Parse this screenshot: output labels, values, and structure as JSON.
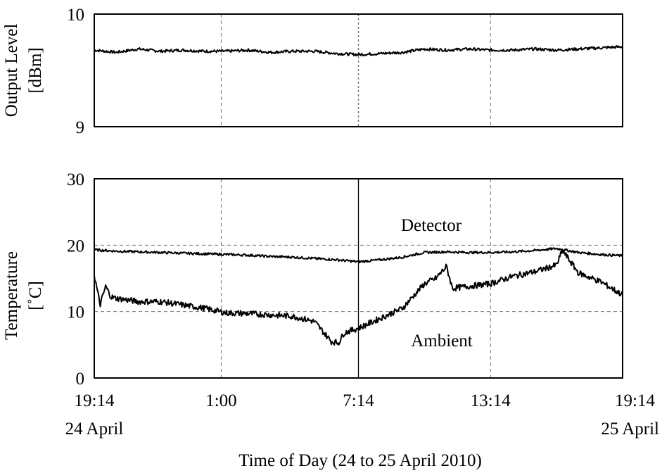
{
  "chart_data": [
    {
      "type": "line",
      "ylabel": [
        "Output Level",
        "[dBm]"
      ],
      "ylim": [
        9,
        10
      ],
      "yticks": [
        "10",
        "9"
      ],
      "xlim": [
        "24 April 19:14",
        "25 April 19:14"
      ],
      "grid": "vertical dashed",
      "series": [
        {
          "x": [
            "19:14",
            "20:14",
            "21:14",
            "22:14",
            "23:14",
            "0:14",
            "1:14",
            "2:14",
            "3:14",
            "4:14",
            "5:14",
            "6:14",
            "7:14",
            "8:14",
            "9:14",
            "10:14",
            "11:14",
            "12:14",
            "13:14",
            "14:14",
            "15:14",
            "16:14",
            "17:14",
            "18:14",
            "19:14"
          ],
          "values": [
            9.68,
            9.66,
            9.69,
            9.67,
            9.68,
            9.67,
            9.67,
            9.68,
            9.66,
            9.67,
            9.67,
            9.65,
            9.64,
            9.65,
            9.66,
            9.69,
            9.68,
            9.69,
            9.68,
            9.68,
            9.69,
            9.68,
            9.69,
            9.7,
            9.71
          ],
          "color": "#000000"
        }
      ]
    },
    {
      "type": "line",
      "ylabel": [
        "Temperature",
        "[˚C]"
      ],
      "ylim": [
        0,
        30
      ],
      "yticks": [
        "30",
        "20",
        "10",
        "0"
      ],
      "xticks": [
        "19:14",
        "1:00",
        "7:14",
        "13:14",
        "19:14"
      ],
      "xtick_dates": [
        "24 April",
        "25 April"
      ],
      "xlabel": "Time of Day (24 to 25 April 2010)",
      "grid": "dashed",
      "annotations": [
        "Detector",
        "Ambient"
      ],
      "series": [
        {
          "x": [
            "19:14",
            "20:14",
            "21:14",
            "22:14",
            "23:14",
            "0:14",
            "1:14",
            "2:14",
            "3:14",
            "4:14",
            "5:14",
            "6:14",
            "7:14",
            "8:14",
            "9:14",
            "10:14",
            "11:14",
            "12:14",
            "13:14",
            "14:14",
            "15:14",
            "16:14",
            "17:14",
            "18:14",
            "19:14"
          ],
          "values": [
            19.3,
            19.1,
            19.0,
            18.9,
            18.8,
            18.7,
            18.6,
            18.5,
            18.3,
            18.2,
            18.0,
            17.8,
            17.5,
            17.8,
            18.2,
            18.9,
            19.0,
            18.9,
            18.9,
            19.0,
            19.2,
            19.5,
            18.9,
            18.6,
            18.4
          ],
          "color": "#000000"
        },
        {
          "x": [
            "19:14",
            "19:30",
            "19:45",
            "20:00",
            "20:14",
            "21:14",
            "22:14",
            "23:14",
            "0:14",
            "1:14",
            "2:14",
            "3:14",
            "4:14",
            "5:14",
            "6:00",
            "6:20",
            "6:35",
            "7:14",
            "8:14",
            "9:14",
            "10:14",
            "10:45",
            "11:14",
            "11:30",
            "12:14",
            "13:14",
            "14:14",
            "15:14",
            "16:14",
            "16:30",
            "17:14",
            "18:14",
            "19:14"
          ],
          "values": [
            15.5,
            11.0,
            13.8,
            12.2,
            12.0,
            11.5,
            11.5,
            11.0,
            10.5,
            9.8,
            9.7,
            9.5,
            9.3,
            8.5,
            5.5,
            5.3,
            6.8,
            7.5,
            9.0,
            10.5,
            14.2,
            15.0,
            16.8,
            13.5,
            13.8,
            14.2,
            15.3,
            16.0,
            17.0,
            19.2,
            15.8,
            14.5,
            12.5
          ],
          "color": "#000000"
        }
      ]
    }
  ]
}
